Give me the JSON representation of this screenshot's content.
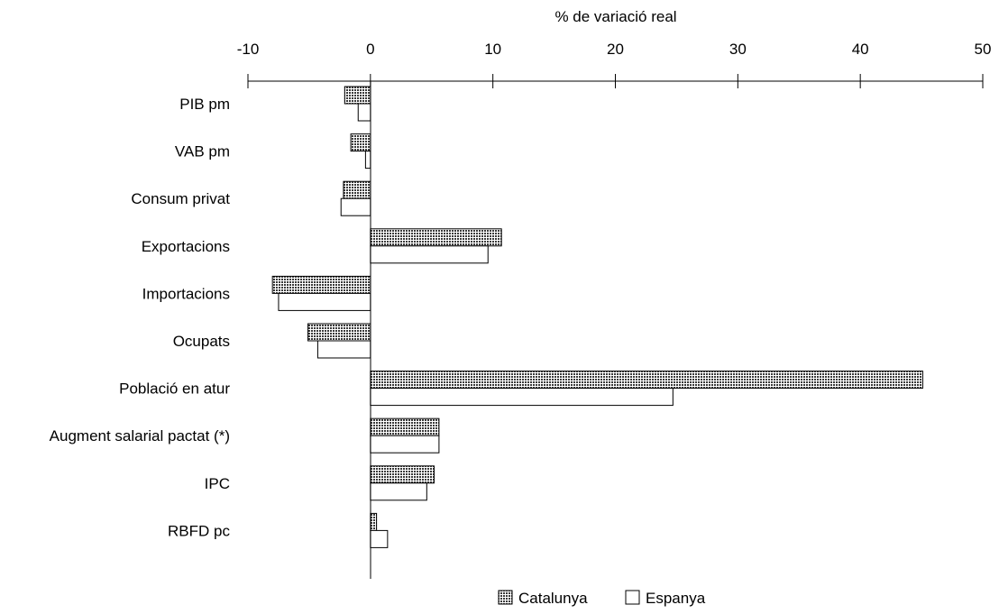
{
  "chart_data": {
    "type": "bar",
    "orientation": "horizontal",
    "title": "",
    "xlabel": "% de variació real",
    "ylabel": "",
    "xlim": [
      -10,
      50
    ],
    "xticks": [
      -10,
      0,
      10,
      20,
      30,
      40,
      50
    ],
    "xtick_labels": [
      "-10",
      "0",
      "10",
      "20",
      "30",
      "40",
      "50"
    ],
    "axis_position": "top",
    "grid": false,
    "categories": [
      "PIB pm",
      "VAB pm",
      "Consum privat",
      "Exportacions",
      "Importacions",
      "Ocupats",
      "Població en atur",
      "Augment salarial pactat (*)",
      "IPC",
      "RBFD pc"
    ],
    "series": [
      {
        "name": "Catalunya",
        "fill": "hatched-dark",
        "color": "#555555",
        "values": [
          -2.1,
          -1.6,
          -2.2,
          10.7,
          -8.0,
          -5.1,
          45.1,
          5.6,
          5.2,
          0.5
        ]
      },
      {
        "name": "Espanya",
        "fill": "white",
        "color": "#ffffff",
        "values": [
          -1.0,
          -0.4,
          -2.4,
          9.6,
          -7.5,
          -4.3,
          24.7,
          5.6,
          4.6,
          1.4
        ]
      }
    ],
    "legend": {
      "position": "bottom-center",
      "labels": [
        "Catalunya",
        "Espanya"
      ]
    }
  }
}
